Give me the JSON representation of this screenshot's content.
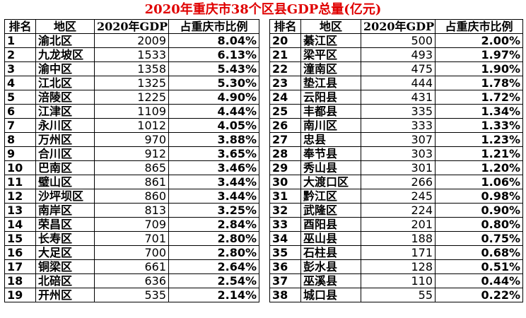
{
  "title": "2020年重庆市38个区县GDP总量(亿元)",
  "tables": [
    {
      "headers": [
        "排名",
        "地区",
        "2020年GDP",
        "占重庆市比例"
      ],
      "rows": [
        [
          1,
          "渝北区",
          2009,
          "8.04%"
        ],
        [
          2,
          "九龙坡区",
          1533,
          "6.13%"
        ],
        [
          3,
          "渝中区",
          1358,
          "5.43%"
        ],
        [
          4,
          "江北区",
          1325,
          "5.30%"
        ],
        [
          5,
          "涪陵区",
          1225,
          "4.90%"
        ],
        [
          6,
          "江津区",
          1109,
          "4.44%"
        ],
        [
          7,
          "永川区",
          1012,
          "4.05%"
        ],
        [
          8,
          "万州区",
          970,
          "3.88%"
        ],
        [
          9,
          "合川区",
          912,
          "3.65%"
        ],
        [
          10,
          "巴南区",
          865,
          "3.46%"
        ],
        [
          11,
          "璧山区",
          861,
          "3.44%"
        ],
        [
          12,
          "沙坪坝区",
          860,
          "3.44%"
        ],
        [
          13,
          "南岸区",
          813,
          "3.25%"
        ],
        [
          14,
          "荣昌区",
          709,
          "2.84%"
        ],
        [
          15,
          "长寿区",
          701,
          "2.80%"
        ],
        [
          16,
          "大足区",
          700,
          "2.80%"
        ],
        [
          17,
          "铜梁区",
          661,
          "2.64%"
        ],
        [
          18,
          "北碚区",
          636,
          "2.54%"
        ],
        [
          19,
          "开州区",
          535,
          "2.14%"
        ]
      ]
    },
    {
      "headers": [
        "排名",
        "地区",
        "2020年GDP",
        "占重庆市比例"
      ],
      "rows": [
        [
          20,
          "綦江区",
          500,
          "2.00%"
        ],
        [
          21,
          "梁平区",
          493,
          "1.97%"
        ],
        [
          22,
          "潼南区",
          475,
          "1.90%"
        ],
        [
          23,
          "垫江县",
          444,
          "1.78%"
        ],
        [
          24,
          "云阳县",
          431,
          "1.72%"
        ],
        [
          25,
          "丰都县",
          335,
          "1.34%"
        ],
        [
          26,
          "南川区",
          333,
          "1.33%"
        ],
        [
          27,
          "忠县",
          307,
          "1.23%"
        ],
        [
          28,
          "奉节县",
          303,
          "1.21%"
        ],
        [
          29,
          "秀山县",
          301,
          "1.20%"
        ],
        [
          30,
          "大渡口区",
          266,
          "1.06%"
        ],
        [
          31,
          "黔江区",
          245,
          "0.98%"
        ],
        [
          32,
          "武隆区",
          224,
          "0.90%"
        ],
        [
          33,
          "酉阳县",
          201,
          "0.80%"
        ],
        [
          34,
          "巫山县",
          188,
          "0.75%"
        ],
        [
          35,
          "石柱县",
          171,
          "0.68%"
        ],
        [
          36,
          "彭水县",
          128,
          "0.51%"
        ],
        [
          37,
          "巫溪县",
          110,
          "0.44%"
        ],
        [
          38,
          "城口县",
          55,
          "0.22%"
        ]
      ]
    }
  ]
}
